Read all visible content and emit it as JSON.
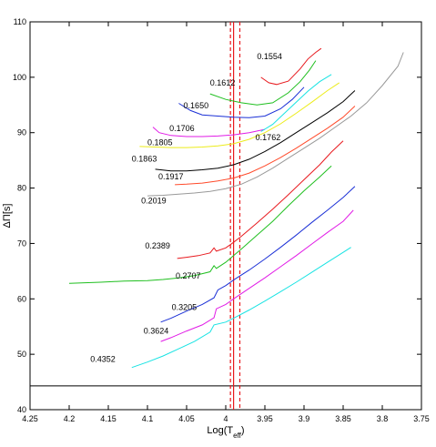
{
  "chart_data": {
    "type": "line",
    "xlabel": "Log(T",
    "xlabel_sub": "eff",
    "xlabel_close": ")",
    "ylabel_main": "ΔΠ[s]",
    "xlim": [
      4.25,
      3.75
    ],
    "ylim": [
      40,
      110
    ],
    "x_ticks": [
      "4.25",
      "4.2",
      "4.15",
      "4.1",
      "4.05",
      "4",
      "3.95",
      "3.9",
      "3.85",
      "3.8",
      "3.75"
    ],
    "y_ticks": [
      "40",
      "50",
      "60",
      "70",
      "80",
      "90",
      "100",
      "110"
    ],
    "grid": false,
    "legend": "none",
    "reference_lines": {
      "horizontal_y": 44.3,
      "vertical_solid_x": 3.99,
      "vertical_dashed_x": [
        3.994,
        3.982
      ],
      "vertical_color": "#e8191e"
    },
    "series": [
      {
        "name": "0.1554",
        "color": "#e8191e",
        "label_x": 3.96,
        "label_y": 103.3,
        "points": [
          [
            3.955,
            100
          ],
          [
            3.945,
            99
          ],
          [
            3.935,
            98.7
          ],
          [
            3.92,
            99.3
          ],
          [
            3.905,
            101.5
          ],
          [
            3.895,
            103.3
          ],
          [
            3.885,
            104.5
          ],
          [
            3.878,
            105.2
          ]
        ]
      },
      {
        "name": "0.1612",
        "color": "#1fbf1f",
        "label_x": 4.02,
        "label_y": 98.5,
        "points": [
          [
            4.02,
            97
          ],
          [
            4.0,
            96
          ],
          [
            3.98,
            95.4
          ],
          [
            3.96,
            95
          ],
          [
            3.94,
            95.4
          ],
          [
            3.92,
            97.2
          ],
          [
            3.905,
            99.2
          ],
          [
            3.893,
            101.3
          ],
          [
            3.885,
            103
          ]
        ]
      },
      {
        "name": "0.1650",
        "color": "#1a2fd6",
        "label_x": 4.054,
        "label_y": 94.4,
        "points": [
          [
            4.06,
            95.3
          ],
          [
            4.045,
            94
          ],
          [
            4.03,
            93.2
          ],
          [
            4.01,
            93
          ],
          [
            3.99,
            92.8
          ],
          [
            3.97,
            92.7
          ],
          [
            3.95,
            93
          ],
          [
            3.93,
            94.3
          ],
          [
            3.915,
            96
          ],
          [
            3.9,
            98.2
          ]
        ]
      },
      {
        "name": "0.1706",
        "color": "#e11be6",
        "label_x": 4.072,
        "label_y": 90.3,
        "points": [
          [
            4.093,
            91
          ],
          [
            4.085,
            90
          ],
          [
            4.07,
            89.5
          ],
          [
            4.05,
            89.3
          ],
          [
            4.03,
            89.3
          ],
          [
            4.01,
            89.4
          ],
          [
            3.99,
            89.6
          ],
          [
            3.97,
            90
          ],
          [
            3.95,
            90.6
          ]
        ]
      },
      {
        "name": "0.1762",
        "color": "#18e3e3",
        "label_x": 3.962,
        "label_y": 88.6,
        "points": [
          [
            3.955,
            90.2
          ],
          [
            3.94,
            91.5
          ],
          [
            3.925,
            93.5
          ],
          [
            3.91,
            95.5
          ],
          [
            3.895,
            97.5
          ],
          [
            3.88,
            99.2
          ],
          [
            3.865,
            100.5
          ]
        ]
      },
      {
        "name": "0.1805",
        "color": "#ecec1a",
        "label_x": 4.1,
        "label_y": 87.7,
        "points": [
          [
            4.11,
            87.5
          ],
          [
            4.09,
            87.4
          ],
          [
            4.07,
            87.3
          ],
          [
            4.05,
            87.3
          ],
          [
            4.03,
            87.4
          ],
          [
            4.01,
            87.6
          ],
          [
            3.99,
            88
          ],
          [
            3.97,
            88.8
          ],
          [
            3.95,
            90
          ],
          [
            3.93,
            91.6
          ],
          [
            3.91,
            93.5
          ],
          [
            3.89,
            95.5
          ],
          [
            3.87,
            97.6
          ],
          [
            3.855,
            99
          ]
        ]
      },
      {
        "name": "0.1863",
        "color": "#000000",
        "label_x": 4.12,
        "label_y": 84.8,
        "points": [
          [
            4.09,
            83.4
          ],
          [
            4.07,
            83.1
          ],
          [
            4.05,
            83.1
          ],
          [
            4.03,
            83.3
          ],
          [
            4.01,
            83.6
          ],
          [
            3.99,
            84.2
          ],
          [
            3.97,
            85.2
          ],
          [
            3.95,
            86.6
          ],
          [
            3.93,
            88.2
          ],
          [
            3.91,
            90
          ],
          [
            3.89,
            91.8
          ],
          [
            3.87,
            93.6
          ],
          [
            3.85,
            95.6
          ],
          [
            3.835,
            97.6
          ]
        ]
      },
      {
        "name": "0.1917",
        "color": "#ff4a2a",
        "label_x": 4.086,
        "label_y": 81.6,
        "points": [
          [
            4.065,
            80.6
          ],
          [
            4.05,
            80.7
          ],
          [
            4.03,
            80.9
          ],
          [
            4.01,
            81.3
          ],
          [
            3.99,
            81.8
          ],
          [
            3.97,
            82.7
          ],
          [
            3.95,
            84
          ],
          [
            3.93,
            85.5
          ],
          [
            3.91,
            87.2
          ],
          [
            3.89,
            89
          ],
          [
            3.87,
            90.8
          ],
          [
            3.85,
            92.8
          ],
          [
            3.835,
            94.8
          ]
        ]
      },
      {
        "name": "0.2019",
        "color": "#999999",
        "label_x": 4.108,
        "label_y": 77.2,
        "points": [
          [
            4.1,
            78.6
          ],
          [
            4.08,
            78.7
          ],
          [
            4.06,
            78.9
          ],
          [
            4.04,
            79.1
          ],
          [
            4.02,
            79.4
          ],
          [
            4.0,
            79.9
          ],
          [
            3.98,
            80.7
          ],
          [
            3.96,
            82
          ],
          [
            3.94,
            83.6
          ],
          [
            3.92,
            85.4
          ],
          [
            3.9,
            87.2
          ],
          [
            3.88,
            89
          ],
          [
            3.86,
            91
          ],
          [
            3.84,
            93
          ],
          [
            3.82,
            95.4
          ],
          [
            3.8,
            98.5
          ],
          [
            3.78,
            102
          ],
          [
            3.773,
            104.5
          ]
        ]
      },
      {
        "name": "0.2389",
        "color": "#e8191e",
        "label_x": 4.103,
        "label_y": 69.1,
        "points": [
          [
            4.062,
            67.3
          ],
          [
            4.05,
            67.5
          ],
          [
            4.035,
            67.8
          ],
          [
            4.02,
            68.3
          ],
          [
            4.015,
            69.2
          ],
          [
            4.012,
            68.6
          ],
          [
            4.0,
            69.2
          ],
          [
            3.99,
            70.2
          ],
          [
            3.98,
            71.3
          ],
          [
            3.96,
            73.7
          ],
          [
            3.94,
            76.2
          ],
          [
            3.92,
            78.8
          ],
          [
            3.9,
            81.5
          ],
          [
            3.88,
            84.2
          ],
          [
            3.865,
            86.5
          ],
          [
            3.85,
            88.5
          ]
        ]
      },
      {
        "name": "0.2707",
        "color": "#1fbf1f",
        "label_x": 4.064,
        "label_y": 63.7,
        "points": [
          [
            4.2,
            62.8
          ],
          [
            4.16,
            63
          ],
          [
            4.13,
            63.2
          ],
          [
            4.1,
            63.3
          ],
          [
            4.08,
            63.5
          ],
          [
            4.06,
            63.8
          ],
          [
            4.04,
            64.2
          ],
          [
            4.02,
            64.9
          ],
          [
            4.015,
            66
          ],
          [
            4.012,
            65.5
          ],
          [
            4.0,
            66.6
          ],
          [
            3.99,
            67.8
          ],
          [
            3.98,
            69
          ],
          [
            3.96,
            71.5
          ],
          [
            3.94,
            74
          ],
          [
            3.92,
            76.8
          ],
          [
            3.9,
            79.5
          ],
          [
            3.88,
            82
          ],
          [
            3.865,
            84
          ]
        ]
      },
      {
        "name": "0.3205",
        "color": "#1a2fd6",
        "label_x": 4.069,
        "label_y": 58,
        "points": [
          [
            4.083,
            55.8
          ],
          [
            4.07,
            56.5
          ],
          [
            4.05,
            57.8
          ],
          [
            4.03,
            59
          ],
          [
            4.015,
            60.2
          ],
          [
            4.01,
            61.6
          ],
          [
            4.0,
            62.4
          ],
          [
            3.99,
            63.4
          ],
          [
            3.97,
            65.2
          ],
          [
            3.95,
            67.2
          ],
          [
            3.93,
            69.3
          ],
          [
            3.91,
            71.5
          ],
          [
            3.89,
            73.8
          ],
          [
            3.87,
            76
          ],
          [
            3.85,
            78.3
          ],
          [
            3.835,
            80.3
          ]
        ]
      },
      {
        "name": "0.3624",
        "color": "#e11be6",
        "label_x": 4.105,
        "label_y": 53.7,
        "points": [
          [
            4.083,
            52.3
          ],
          [
            4.07,
            53
          ],
          [
            4.05,
            54.2
          ],
          [
            4.03,
            55.3
          ],
          [
            4.015,
            56.6
          ],
          [
            4.012,
            58.2
          ],
          [
            4.0,
            59
          ],
          [
            3.99,
            60
          ],
          [
            3.97,
            61.9
          ],
          [
            3.95,
            63.8
          ],
          [
            3.93,
            65.8
          ],
          [
            3.91,
            67.8
          ],
          [
            3.89,
            69.9
          ],
          [
            3.87,
            72
          ],
          [
            3.85,
            74
          ],
          [
            3.837,
            76
          ]
        ]
      },
      {
        "name": "0.4352",
        "color": "#18e3e3",
        "label_x": 4.173,
        "label_y": 48.6,
        "points": [
          [
            4.12,
            47.6
          ],
          [
            4.1,
            48.6
          ],
          [
            4.08,
            49.7
          ],
          [
            4.06,
            51
          ],
          [
            4.04,
            52.3
          ],
          [
            4.02,
            54
          ],
          [
            4.015,
            55.3
          ],
          [
            4.0,
            55.8
          ],
          [
            3.99,
            56.5
          ],
          [
            3.97,
            58
          ],
          [
            3.95,
            59.6
          ],
          [
            3.93,
            61.3
          ],
          [
            3.91,
            63
          ],
          [
            3.89,
            64.8
          ],
          [
            3.87,
            66.6
          ],
          [
            3.85,
            68.4
          ],
          [
            3.84,
            69.3
          ]
        ]
      }
    ]
  }
}
